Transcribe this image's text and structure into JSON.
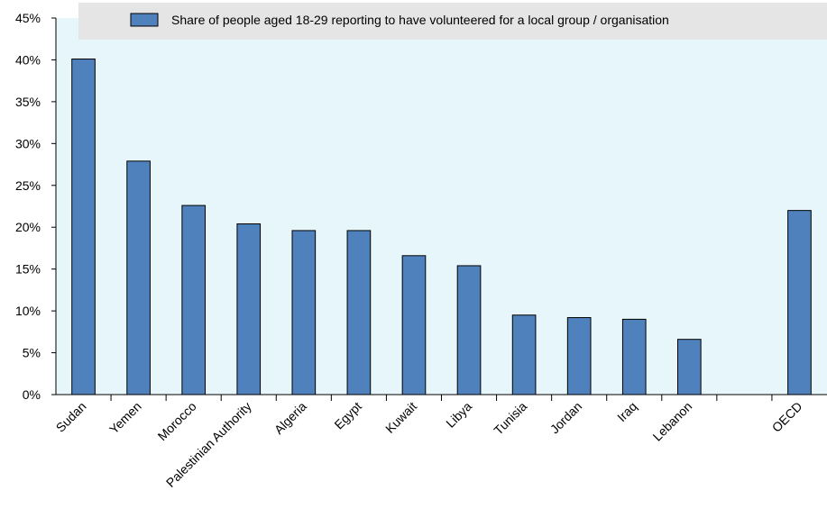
{
  "chart_data": {
    "type": "bar",
    "title": "",
    "xlabel": "",
    "ylabel": "",
    "ylim": [
      0,
      45
    ],
    "yticks": [
      "0%",
      "5%",
      "10%",
      "15%",
      "20%",
      "25%",
      "30%",
      "35%",
      "40%",
      "45%"
    ],
    "grid": false,
    "legend_position": "top",
    "categories": [
      "Sudan",
      "Yemen",
      "Morocco",
      "Palestinian Authority",
      "Algeria",
      "Egypt",
      "Kuwait",
      "Libya",
      "Tunisia",
      "Jordan",
      "Iraq",
      "Lebanon",
      "",
      "OECD"
    ],
    "series": [
      {
        "name": "Share of people aged 18-29 reporting to have volunteered for a local group / organisation",
        "values": [
          40.1,
          27.9,
          22.6,
          20.4,
          19.6,
          19.6,
          16.6,
          15.4,
          9.5,
          9.2,
          9.0,
          6.6,
          null,
          22.0
        ]
      }
    ],
    "colors": {
      "bar": "#4f81bd",
      "bar_stroke": "#000000",
      "plot_background": "#e6f6fa",
      "legend_background": "#e5e5e5"
    }
  }
}
